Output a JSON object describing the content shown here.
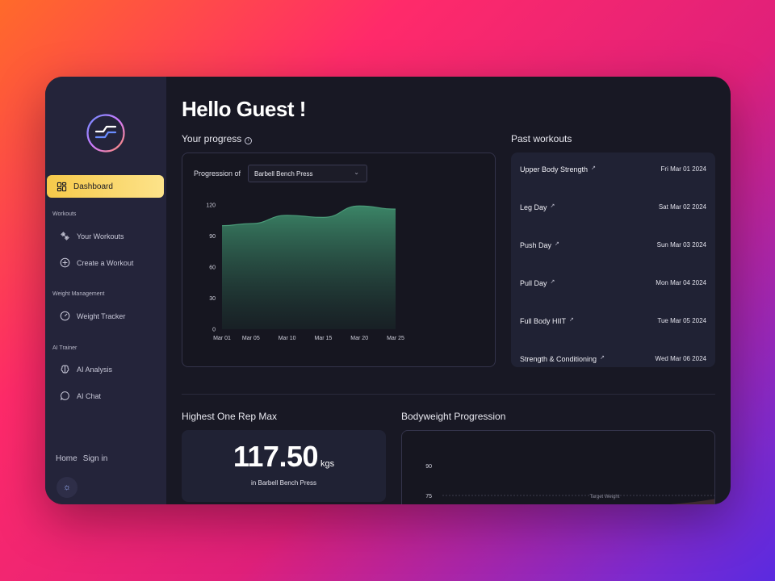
{
  "sidebar": {
    "dashboard_label": "Dashboard",
    "sections": [
      {
        "label": "Workouts",
        "items": [
          "Your Workouts",
          "Create a Workout"
        ]
      },
      {
        "label": "Weight Management",
        "items": [
          "Weight Tracker"
        ]
      },
      {
        "label": "AI Trainer",
        "items": [
          "AI Analysis",
          "AI Chat"
        ]
      }
    ],
    "footer": {
      "home": "Home",
      "sign_in": "Sign in"
    }
  },
  "header": {
    "title": "Hello Guest !"
  },
  "progress": {
    "heading": "Your progress",
    "progression_label": "Progression of",
    "selected_exercise": "Barbell Bench Press"
  },
  "past_workouts": {
    "heading": "Past workouts",
    "rows": [
      {
        "name": "Upper Body Strength",
        "date": "Fri Mar 01 2024"
      },
      {
        "name": "Leg Day",
        "date": "Sat Mar 02 2024"
      },
      {
        "name": "Push Day",
        "date": "Sun Mar 03 2024"
      },
      {
        "name": "Pull Day",
        "date": "Mon Mar 04 2024"
      },
      {
        "name": "Full Body HIIT",
        "date": "Tue Mar 05 2024"
      },
      {
        "name": "Strength & Conditioning",
        "date": "Wed Mar 06 2024"
      }
    ]
  },
  "one_rep_max": {
    "heading": "Highest One Rep Max",
    "value": "117.50",
    "unit": "kgs",
    "subtitle": "in Barbell Bench Press"
  },
  "bodyweight": {
    "heading": "Bodyweight Progression",
    "y_ticks": [
      "90",
      "75"
    ],
    "target_label": "Target Weight"
  },
  "colors": {
    "accent_yellow": "#f6c94a",
    "chart_green": "#3d8a6a",
    "card_bg": "#202234"
  },
  "chart_data": {
    "type": "area",
    "x_ticks": [
      "Mar 01",
      "Mar 05",
      "Mar 10",
      "Mar 15",
      "Mar 20",
      "Mar 25"
    ],
    "y_ticks": [
      0,
      30,
      60,
      90,
      120
    ],
    "ylim": [
      0,
      120
    ],
    "x": [
      1,
      5,
      10,
      15,
      20,
      25
    ],
    "values": [
      100,
      102,
      110,
      108,
      119,
      116
    ],
    "xlabel": "",
    "ylabel": "",
    "title": ""
  }
}
